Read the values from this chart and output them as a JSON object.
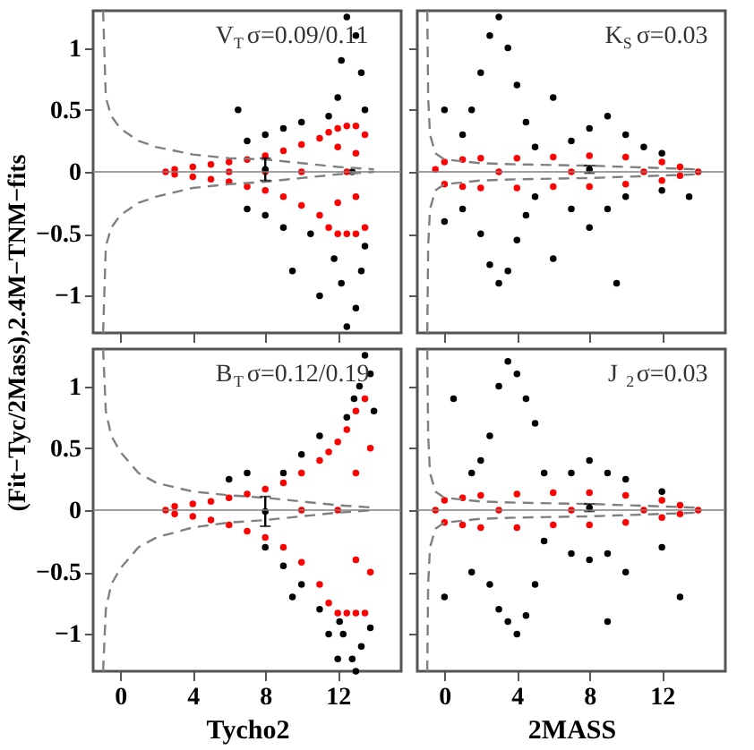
{
  "chart_data": [
    {
      "type": "scatter",
      "xlim": [
        -1.5,
        15.5
      ],
      "ylim": [
        -1.3,
        1.3
      ],
      "xticks": [
        0,
        4,
        8,
        12
      ],
      "yticks": [
        -1,
        -0.5,
        0,
        0.5,
        1
      ],
      "tick_labels": "y",
      "grid": false,
      "legend": false,
      "marker": "circle",
      "annotations": [
        "V$_{T}$σ=0.09/0.11"
      ],
      "ref_lines": [
        {
          "axis": "y",
          "value": 0,
          "color": "#808080"
        }
      ],
      "series": [
        {
          "color": "#000000",
          "x": [
            12.5,
            13,
            12.2,
            13.3,
            12,
            13.5,
            11.5,
            12.5,
            13,
            12.2,
            13.3,
            11.8,
            13.5,
            10,
            9,
            8,
            7,
            6.5,
            10.5,
            9,
            8,
            7,
            9.5,
            11,
            12.8
          ],
          "values": [
            1.25,
            1.1,
            0.9,
            0.8,
            0.6,
            0.5,
            0.45,
            -1.25,
            -1.1,
            -0.9,
            -0.8,
            -0.7,
            -0.6,
            0.4,
            0.35,
            0.3,
            0.25,
            0.5,
            -0.5,
            -0.45,
            -0.35,
            -0.3,
            -0.8,
            -1.0,
            0.0
          ]
        },
        {
          "color": "#ff0000",
          "x": [
            2.5,
            3,
            3,
            4,
            4,
            5,
            5,
            6,
            6,
            7,
            7,
            8,
            8,
            9,
            9,
            10,
            10,
            11,
            11,
            11.5,
            11.5,
            12,
            12,
            12.5,
            12.5,
            13,
            13,
            13.5,
            13.5,
            12.5,
            10,
            8,
            6,
            12,
            12,
            13,
            13
          ],
          "values": [
            0,
            0.02,
            -0.02,
            0.04,
            -0.04,
            0.06,
            -0.06,
            0.08,
            -0.08,
            0.1,
            -0.12,
            0.13,
            -0.15,
            0.17,
            -0.2,
            0.22,
            -0.27,
            0.27,
            -0.35,
            0.32,
            -0.45,
            0.35,
            -0.5,
            0.37,
            -0.5,
            0.37,
            -0.5,
            0.3,
            -0.45,
            0,
            0,
            0,
            0,
            0.2,
            -0.25,
            0.15,
            -0.2
          ]
        },
        {
          "type": "line",
          "marker": "none",
          "color": "#808080",
          "line_style": "dashed",
          "x": [
            -0.95,
            -0.8,
            -0.5,
            0,
            1,
            2,
            4,
            6,
            8,
            10,
            12,
            14
          ],
          "values": [
            1.3,
            0.6,
            0.45,
            0.35,
            0.25,
            0.2,
            0.14,
            0.11,
            0.1,
            0.07,
            0.04,
            0.02
          ]
        },
        {
          "type": "line",
          "marker": "none",
          "color": "#808080",
          "line_style": "dashed",
          "x": [
            -0.95,
            -0.8,
            -0.5,
            0,
            1,
            2,
            4,
            6,
            8,
            10,
            12,
            14
          ],
          "values": [
            -1.3,
            -0.6,
            -0.45,
            -0.35,
            -0.25,
            -0.2,
            -0.13,
            -0.1,
            -0.08,
            -0.05,
            -0.02,
            0
          ]
        },
        {
          "color": "#000000",
          "x": [
            8
          ],
          "values": [
            0.02
          ],
          "errors": [
            0.09
          ]
        }
      ]
    },
    {
      "type": "scatter",
      "xlim": [
        -1.5,
        15.5
      ],
      "ylim": [
        -1.3,
        1.3
      ],
      "xticks": [
        0,
        4,
        8,
        12
      ],
      "yticks": [
        -1,
        -0.5,
        0,
        0.5,
        1
      ],
      "tick_labels": false,
      "grid": false,
      "legend": false,
      "marker": "circle",
      "annotations": [
        "K$_{S}$σ=0.03"
      ],
      "ref_lines": [
        {
          "axis": "y",
          "value": 0,
          "color": "#808080"
        }
      ],
      "series": [
        {
          "color": "#000000",
          "x": [
            2,
            2.5,
            3,
            3.5,
            4,
            4.5,
            5,
            1.5,
            1,
            2,
            2.5,
            3,
            3.5,
            4,
            4.5,
            5,
            1,
            7,
            8,
            9,
            10,
            11,
            12,
            7,
            8,
            9,
            10,
            12,
            9.5,
            6,
            13.5,
            6,
            0,
            0
          ],
          "values": [
            0.8,
            1.1,
            1.25,
            1.0,
            0.7,
            0.4,
            0.2,
            0.5,
            0.3,
            -0.5,
            -0.75,
            -0.9,
            -0.8,
            -0.55,
            -0.35,
            -0.2,
            -0.3,
            0.25,
            0.35,
            0.45,
            0.3,
            0.2,
            0.15,
            -0.3,
            -0.45,
            -0.3,
            -0.2,
            -0.15,
            -0.9,
            -0.7,
            -0.2,
            0.6,
            0.5,
            -0.4
          ]
        },
        {
          "color": "#ff0000",
          "x": [
            -0.5,
            0,
            0,
            1,
            1,
            2,
            2,
            4,
            4,
            6,
            6,
            8,
            8,
            10,
            10,
            12,
            12,
            13,
            13,
            14,
            3,
            7,
            11
          ],
          "values": [
            0.02,
            0.08,
            -0.1,
            0.1,
            -0.12,
            0.11,
            -0.13,
            0.11,
            -0.13,
            0.12,
            -0.12,
            0.13,
            -0.12,
            0.12,
            -0.1,
            0.08,
            -0.07,
            0.04,
            -0.03,
            0,
            0,
            0,
            0
          ]
        },
        {
          "type": "line",
          "marker": "none",
          "color": "#808080",
          "line_style": "dashed",
          "x": [
            -0.95,
            -0.9,
            -0.8,
            -0.5,
            0,
            2,
            4,
            8,
            12,
            14
          ],
          "values": [
            1.3,
            0.6,
            0.3,
            0.15,
            0.1,
            0.07,
            0.06,
            0.05,
            0.03,
            0.02
          ]
        },
        {
          "type": "line",
          "marker": "none",
          "color": "#808080",
          "line_style": "dashed",
          "x": [
            -0.95,
            -0.9,
            -0.8,
            -0.5,
            0,
            2,
            4,
            8,
            12,
            14
          ],
          "values": [
            -1.3,
            -0.6,
            -0.3,
            -0.15,
            -0.1,
            -0.07,
            -0.06,
            -0.05,
            -0.03,
            -0.02
          ]
        },
        {
          "color": "#000000",
          "x": [
            8
          ],
          "values": [
            0.02
          ],
          "errors": [
            0.03
          ]
        }
      ]
    },
    {
      "type": "scatter",
      "xlim": [
        -1.5,
        15.5
      ],
      "ylim": [
        -1.3,
        1.3
      ],
      "xticks": [
        0,
        4,
        8,
        12
      ],
      "yticks": [
        -1,
        -0.5,
        0,
        0.5,
        1
      ],
      "grid": false,
      "legend": false,
      "marker": "circle",
      "xlabel": "Tycho2",
      "ylabel": "(Fit−Tyc/2Mass),2.4M−TNM−fits",
      "annotations": [
        "B$_{T}$σ=0.12/0.19"
      ],
      "ref_lines": [
        {
          "axis": "y",
          "value": 0,
          "color": "#808080"
        }
      ],
      "series": [
        {
          "color": "#000000",
          "x": [
            12.3,
            12.8,
            13.3,
            13.8,
            12.1,
            13,
            13.2,
            13.5,
            13.8,
            12.9,
            12.5,
            14,
            11,
            10,
            9,
            8,
            9,
            10,
            11,
            11.5,
            7,
            9.5,
            6,
            12
          ],
          "values": [
            -1.0,
            -1.2,
            -1.1,
            -0.95,
            -0.9,
            -1.3,
            1.0,
            1.25,
            1.1,
            0.9,
            0.75,
            0.8,
            0.6,
            0.45,
            0.3,
            -0.3,
            -0.45,
            -0.6,
            -0.8,
            -1.0,
            0.3,
            -0.7,
            0.25,
            -1.2
          ]
        },
        {
          "color": "#ff0000",
          "x": [
            2.5,
            3,
            3,
            4,
            4,
            5,
            5,
            6,
            6,
            7,
            7,
            8,
            8,
            9,
            9,
            10,
            10,
            11,
            11,
            11.5,
            11.5,
            12,
            12,
            12.5,
            12.5,
            13,
            13,
            13.5,
            13.5,
            13.8,
            13.8,
            12,
            10,
            13,
            13
          ],
          "values": [
            0,
            0.03,
            -0.03,
            0.05,
            -0.05,
            0.07,
            -0.08,
            0.1,
            -0.12,
            0.13,
            -0.17,
            0.17,
            -0.22,
            0.22,
            -0.3,
            0.3,
            -0.42,
            0.4,
            -0.6,
            0.47,
            -0.75,
            0.55,
            -0.83,
            0.65,
            -0.83,
            0.8,
            -0.83,
            0.9,
            -0.83,
            0.5,
            -0.5,
            0,
            0,
            0.3,
            -0.4
          ]
        },
        {
          "type": "line",
          "marker": "none",
          "color": "#808080",
          "line_style": "dashed",
          "x": [
            -0.95,
            -0.8,
            -0.5,
            0,
            1,
            2,
            4,
            6,
            8,
            10,
            12,
            14
          ],
          "values": [
            1.3,
            0.8,
            0.6,
            0.47,
            0.3,
            0.22,
            0.15,
            0.12,
            0.1,
            0.07,
            0.04,
            0.02
          ]
        },
        {
          "type": "line",
          "marker": "none",
          "color": "#808080",
          "line_style": "dashed",
          "x": [
            -0.95,
            -0.8,
            -0.5,
            0,
            1,
            2,
            4,
            6,
            8,
            10,
            12,
            14
          ],
          "values": [
            -1.3,
            -0.8,
            -0.6,
            -0.47,
            -0.3,
            -0.22,
            -0.14,
            -0.1,
            -0.08,
            -0.05,
            -0.02,
            0
          ]
        },
        {
          "color": "#000000",
          "x": [
            8
          ],
          "values": [
            -0.01
          ],
          "errors": [
            0.12
          ]
        }
      ]
    },
    {
      "type": "scatter",
      "xlim": [
        -1.5,
        15.5
      ],
      "ylim": [
        -1.3,
        1.3
      ],
      "xticks": [
        0,
        4,
        8,
        12
      ],
      "yticks": [
        -1,
        -0.5,
        0,
        0.5,
        1
      ],
      "tick_labels": "x",
      "grid": false,
      "legend": false,
      "marker": "circle",
      "xlabel": "2MASS",
      "annotations": [
        "J$_{2}$σ=0.03"
      ],
      "ref_lines": [
        {
          "axis": "y",
          "value": 0,
          "color": "#808080"
        }
      ],
      "series": [
        {
          "color": "#000000",
          "x": [
            3,
            3.5,
            4,
            4.5,
            5,
            5.5,
            2.5,
            2,
            1.5,
            2.5,
            3,
            3.5,
            4,
            4.5,
            5,
            5.5,
            1.5,
            7,
            8,
            9,
            10,
            12,
            7,
            8,
            9,
            10,
            12,
            9,
            13,
            0.5,
            0
          ],
          "values": [
            1.0,
            1.2,
            1.1,
            0.9,
            0.7,
            0.3,
            0.6,
            0.4,
            0.3,
            -0.6,
            -0.8,
            -0.9,
            -1.0,
            -0.85,
            -0.6,
            -0.25,
            -0.5,
            0.3,
            0.4,
            0.3,
            0.25,
            0.15,
            -0.35,
            -0.4,
            -0.35,
            -0.5,
            -0.3,
            -0.9,
            -0.7,
            0.9,
            -0.7
          ]
        },
        {
          "color": "#ff0000",
          "x": [
            -0.5,
            0,
            0,
            1,
            1,
            2,
            2,
            4,
            4,
            6,
            6,
            8,
            8,
            10,
            10,
            12,
            12,
            13,
            13,
            14,
            3,
            7,
            11
          ],
          "values": [
            0.0,
            0.08,
            -0.1,
            0.1,
            -0.12,
            0.12,
            -0.14,
            0.13,
            -0.14,
            0.14,
            -0.12,
            0.14,
            -0.12,
            0.12,
            -0.1,
            0.08,
            -0.06,
            0.04,
            -0.03,
            0,
            0,
            0,
            0
          ]
        },
        {
          "type": "line",
          "marker": "none",
          "color": "#808080",
          "line_style": "dashed",
          "x": [
            -0.95,
            -0.9,
            -0.8,
            -0.5,
            0,
            2,
            4,
            8,
            12,
            14
          ],
          "values": [
            1.3,
            0.6,
            0.3,
            0.15,
            0.1,
            0.07,
            0.06,
            0.05,
            0.03,
            0.02
          ]
        },
        {
          "type": "line",
          "marker": "none",
          "color": "#808080",
          "line_style": "dashed",
          "x": [
            -0.95,
            -0.9,
            -0.8,
            -0.5,
            0,
            2,
            4,
            8,
            12,
            14
          ],
          "values": [
            -1.3,
            -0.6,
            -0.3,
            -0.15,
            -0.1,
            -0.07,
            -0.06,
            -0.05,
            -0.03,
            -0.02
          ]
        },
        {
          "color": "#000000",
          "x": [
            8
          ],
          "values": [
            0.02
          ],
          "errors": [
            0.03
          ]
        }
      ]
    }
  ]
}
